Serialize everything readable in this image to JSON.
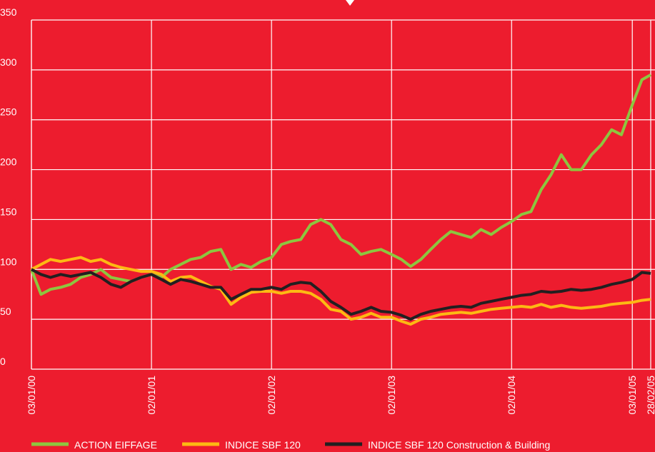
{
  "chart_data": {
    "type": "line",
    "x": [
      "03/01/00",
      "01/02/00",
      "01/03/00",
      "01/04/00",
      "01/05/00",
      "01/06/00",
      "01/07/00",
      "01/08/00",
      "01/09/00",
      "01/10/00",
      "01/11/00",
      "01/12/00",
      "02/01/01",
      "01/02/01",
      "01/03/01",
      "01/04/01",
      "01/05/01",
      "01/06/01",
      "01/07/01",
      "01/08/01",
      "01/09/01",
      "01/10/01",
      "01/11/01",
      "01/12/01",
      "02/01/02",
      "01/02/02",
      "01/03/02",
      "01/04/02",
      "01/05/02",
      "01/06/02",
      "01/07/02",
      "01/08/02",
      "01/09/02",
      "01/10/02",
      "01/11/02",
      "01/12/02",
      "02/01/03",
      "01/02/03",
      "01/03/03",
      "01/04/03",
      "01/05/03",
      "01/06/03",
      "01/07/03",
      "01/08/03",
      "01/09/03",
      "01/10/03",
      "01/11/03",
      "01/12/03",
      "02/01/04",
      "01/02/04",
      "01/03/04",
      "01/04/04",
      "01/05/04",
      "01/06/04",
      "01/07/04",
      "01/08/04",
      "01/09/04",
      "01/10/04",
      "01/11/04",
      "01/12/04",
      "03/01/05",
      "01/02/05",
      "28/02/05"
    ],
    "series": [
      {
        "name": "ACTION EIFFAGE",
        "color": "#8dc63f",
        "values": [
          100,
          75,
          80,
          82,
          85,
          92,
          95,
          100,
          92,
          90,
          88,
          92,
          95,
          92,
          100,
          105,
          110,
          112,
          118,
          120,
          100,
          105,
          102,
          108,
          112,
          125,
          128,
          130,
          145,
          150,
          145,
          130,
          125,
          115,
          118,
          120,
          115,
          110,
          103,
          110,
          120,
          130,
          138,
          135,
          132,
          140,
          135,
          142,
          148,
          155,
          158,
          180,
          195,
          215,
          200,
          200,
          215,
          225,
          240,
          235,
          265,
          290,
          295
        ]
      },
      {
        "name": "INDICE SBF 120",
        "color": "#fdb913",
        "values": [
          100,
          105,
          110,
          108,
          110,
          112,
          108,
          110,
          105,
          102,
          100,
          98,
          98,
          95,
          88,
          92,
          93,
          88,
          83,
          80,
          65,
          72,
          77,
          78,
          78,
          76,
          78,
          78,
          76,
          70,
          60,
          58,
          50,
          52,
          56,
          52,
          52,
          48,
          45,
          50,
          52,
          55,
          56,
          57,
          56,
          58,
          60,
          61,
          62,
          63,
          62,
          65,
          62,
          64,
          62,
          61,
          62,
          63,
          65,
          66,
          67,
          69,
          70
        ]
      },
      {
        "name": "INDICE SBF 120 Construction & Building",
        "color": "#231f20",
        "values": [
          100,
          95,
          92,
          95,
          93,
          95,
          97,
          92,
          85,
          82,
          88,
          92,
          95,
          90,
          85,
          90,
          88,
          85,
          82,
          82,
          70,
          75,
          80,
          80,
          82,
          80,
          85,
          87,
          86,
          78,
          68,
          62,
          55,
          58,
          62,
          58,
          57,
          54,
          50,
          55,
          58,
          60,
          62,
          63,
          62,
          66,
          68,
          70,
          72,
          74,
          75,
          78,
          77,
          78,
          80,
          79,
          80,
          82,
          85,
          87,
          90,
          97,
          96
        ]
      }
    ],
    "xlim": [
      "03/01/00",
      "28/02/05"
    ],
    "xticks": [
      "03/01/00",
      "02/01/01",
      "02/01/02",
      "02/01/03",
      "02/01/04",
      "03/01/05",
      "28/02/05"
    ],
    "ylim": [
      0,
      350
    ],
    "yticks": [
      0,
      50,
      100,
      150,
      200,
      250,
      300,
      350
    ],
    "grid": true,
    "legend": "bottom"
  }
}
